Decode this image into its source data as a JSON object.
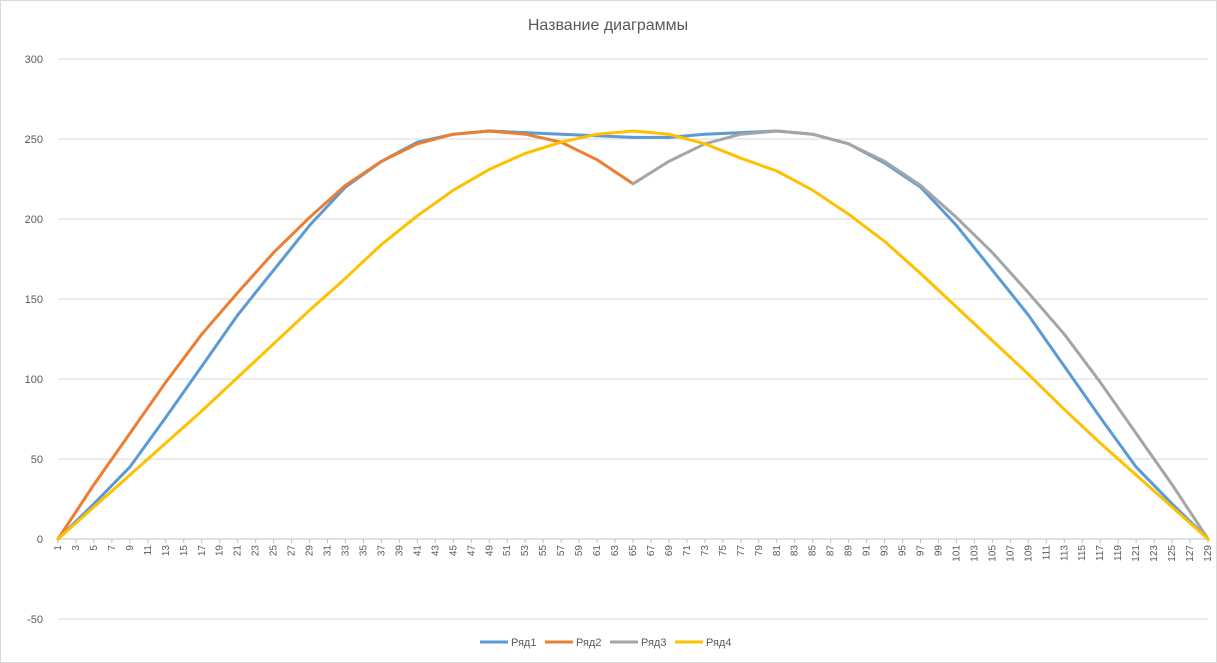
{
  "chart_data": {
    "type": "line",
    "title": "Название диаграммы",
    "xlabel": "",
    "ylabel": "",
    "x_range": [
      1,
      129
    ],
    "ylim": [
      -50,
      300
    ],
    "y_ticks": [
      -50,
      0,
      50,
      100,
      150,
      200,
      250,
      300
    ],
    "x_tick_labels": [
      "1",
      "3",
      "5",
      "7",
      "9",
      "11",
      "13",
      "15",
      "17",
      "19",
      "21",
      "23",
      "25",
      "27",
      "29",
      "31",
      "33",
      "35",
      "37",
      "39",
      "41",
      "43",
      "45",
      "47",
      "49",
      "51",
      "53",
      "55",
      "57",
      "59",
      "61",
      "63",
      "65",
      "67",
      "69",
      "71",
      "73",
      "75",
      "77",
      "79",
      "81",
      "83",
      "85",
      "87",
      "89",
      "91",
      "93",
      "95",
      "97",
      "99",
      "101",
      "103",
      "105",
      "107",
      "109",
      "111",
      "113",
      "115",
      "117",
      "119",
      "121",
      "123",
      "125",
      "127",
      "129"
    ],
    "grid": true,
    "legend_position": "bottom",
    "series": [
      {
        "name": "Ряд1",
        "color": "#5b9bd5",
        "points": [
          [
            1,
            0
          ],
          [
            5,
            22
          ],
          [
            9,
            45
          ],
          [
            13,
            76
          ],
          [
            17,
            108
          ],
          [
            21,
            140
          ],
          [
            25,
            168
          ],
          [
            29,
            196
          ],
          [
            33,
            220
          ],
          [
            37,
            236
          ],
          [
            41,
            248
          ],
          [
            45,
            253
          ],
          [
            49,
            255
          ],
          [
            53,
            254
          ],
          [
            57,
            253
          ],
          [
            61,
            252
          ],
          [
            65,
            251
          ],
          [
            69,
            251
          ],
          [
            73,
            253
          ],
          [
            77,
            254
          ],
          [
            81,
            255
          ],
          [
            85,
            253
          ],
          [
            89,
            247
          ],
          [
            93,
            235
          ],
          [
            97,
            220
          ],
          [
            101,
            196
          ],
          [
            105,
            168
          ],
          [
            109,
            140
          ],
          [
            113,
            108
          ],
          [
            117,
            76
          ],
          [
            121,
            45
          ],
          [
            125,
            22
          ],
          [
            129,
            0
          ]
        ]
      },
      {
        "name": "Ряд2",
        "color": "#ed7d31",
        "points": [
          [
            1,
            0
          ],
          [
            5,
            34
          ],
          [
            9,
            66
          ],
          [
            13,
            98
          ],
          [
            17,
            128
          ],
          [
            21,
            154
          ],
          [
            25,
            179
          ],
          [
            29,
            201
          ],
          [
            33,
            221
          ],
          [
            37,
            236
          ],
          [
            41,
            247
          ],
          [
            45,
            253
          ],
          [
            49,
            255
          ],
          [
            53,
            253
          ],
          [
            57,
            248
          ],
          [
            61,
            237
          ],
          [
            65,
            222
          ]
        ]
      },
      {
        "name": "Ряд3",
        "color": "#a5a5a5",
        "points": [
          [
            65,
            222
          ],
          [
            69,
            236
          ],
          [
            73,
            247
          ],
          [
            77,
            253
          ],
          [
            81,
            255
          ],
          [
            85,
            253
          ],
          [
            89,
            247
          ],
          [
            93,
            236
          ],
          [
            97,
            221
          ],
          [
            101,
            201
          ],
          [
            105,
            179
          ],
          [
            109,
            154
          ],
          [
            113,
            128
          ],
          [
            117,
            98
          ],
          [
            121,
            66
          ],
          [
            125,
            34
          ],
          [
            129,
            0
          ]
        ]
      },
      {
        "name": "Ряд4",
        "color": "#ffc000",
        "points": [
          [
            1,
            0
          ],
          [
            5,
            20
          ],
          [
            9,
            40
          ],
          [
            13,
            60
          ],
          [
            17,
            80
          ],
          [
            21,
            101
          ],
          [
            25,
            122
          ],
          [
            29,
            143
          ],
          [
            33,
            163
          ],
          [
            37,
            184
          ],
          [
            41,
            202
          ],
          [
            45,
            218
          ],
          [
            49,
            231
          ],
          [
            53,
            241
          ],
          [
            57,
            248
          ],
          [
            61,
            253
          ],
          [
            65,
            255
          ],
          [
            69,
            253
          ],
          [
            73,
            247
          ],
          [
            77,
            238
          ],
          [
            81,
            230
          ],
          [
            85,
            218
          ],
          [
            89,
            203
          ],
          [
            93,
            186
          ],
          [
            97,
            166
          ],
          [
            101,
            145
          ],
          [
            105,
            124
          ],
          [
            109,
            103
          ],
          [
            113,
            81
          ],
          [
            117,
            60
          ],
          [
            121,
            40
          ],
          [
            125,
            20
          ],
          [
            129,
            0
          ]
        ]
      }
    ]
  }
}
